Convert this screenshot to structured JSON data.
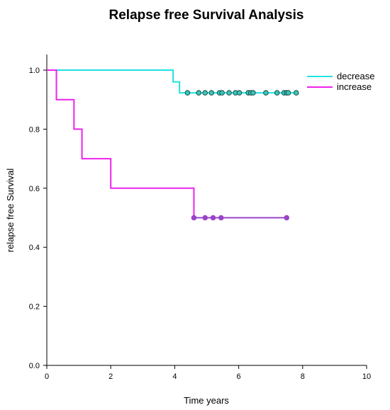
{
  "chart_data": {
    "type": "line",
    "subtype": "kaplan-meier step",
    "title": "Relapse free Survival Analysis",
    "xlabel": "Time years",
    "ylabel": "relapse free Survival",
    "xlim": [
      0,
      10
    ],
    "ylim": [
      0,
      1.0
    ],
    "xticks": [
      "0",
      "2",
      "4",
      "6",
      "8",
      "10"
    ],
    "yticks": [
      "0.0",
      "0.2",
      "0.4",
      "0.6",
      "0.8",
      "1.0"
    ],
    "grid": false,
    "legend_position": "top-right",
    "series": [
      {
        "name": "decrease",
        "color": "#22e0e0",
        "marker_color": "#3cc4b4",
        "steps": [
          [
            0,
            1.0
          ],
          [
            3.95,
            1.0
          ],
          [
            3.95,
            0.96
          ],
          [
            4.15,
            0.96
          ],
          [
            4.15,
            0.923
          ],
          [
            7.8,
            0.923
          ]
        ],
        "censored": [
          4.4,
          4.75,
          4.95,
          5.15,
          5.4,
          5.48,
          5.7,
          5.9,
          6.02,
          6.3,
          6.38,
          6.45,
          6.85,
          7.2,
          7.42,
          7.5,
          7.55,
          7.8
        ],
        "censor_y": 0.923
      },
      {
        "name": "increase",
        "color": "#ee22ee",
        "marker_color": "#9a44c8",
        "tail_color": "#9a44c8",
        "steps": [
          [
            0,
            1.0
          ],
          [
            0.3,
            1.0
          ],
          [
            0.3,
            0.9
          ],
          [
            0.85,
            0.9
          ],
          [
            0.85,
            0.8
          ],
          [
            1.1,
            0.8
          ],
          [
            1.1,
            0.7
          ],
          [
            2.0,
            0.7
          ],
          [
            2.0,
            0.6
          ],
          [
            4.6,
            0.6
          ],
          [
            4.6,
            0.5
          ],
          [
            7.55,
            0.5
          ]
        ],
        "tail_from_x": 4.6,
        "censored": [
          4.6,
          4.95,
          5.2,
          5.45,
          7.5
        ],
        "censor_y": 0.5
      }
    ]
  }
}
